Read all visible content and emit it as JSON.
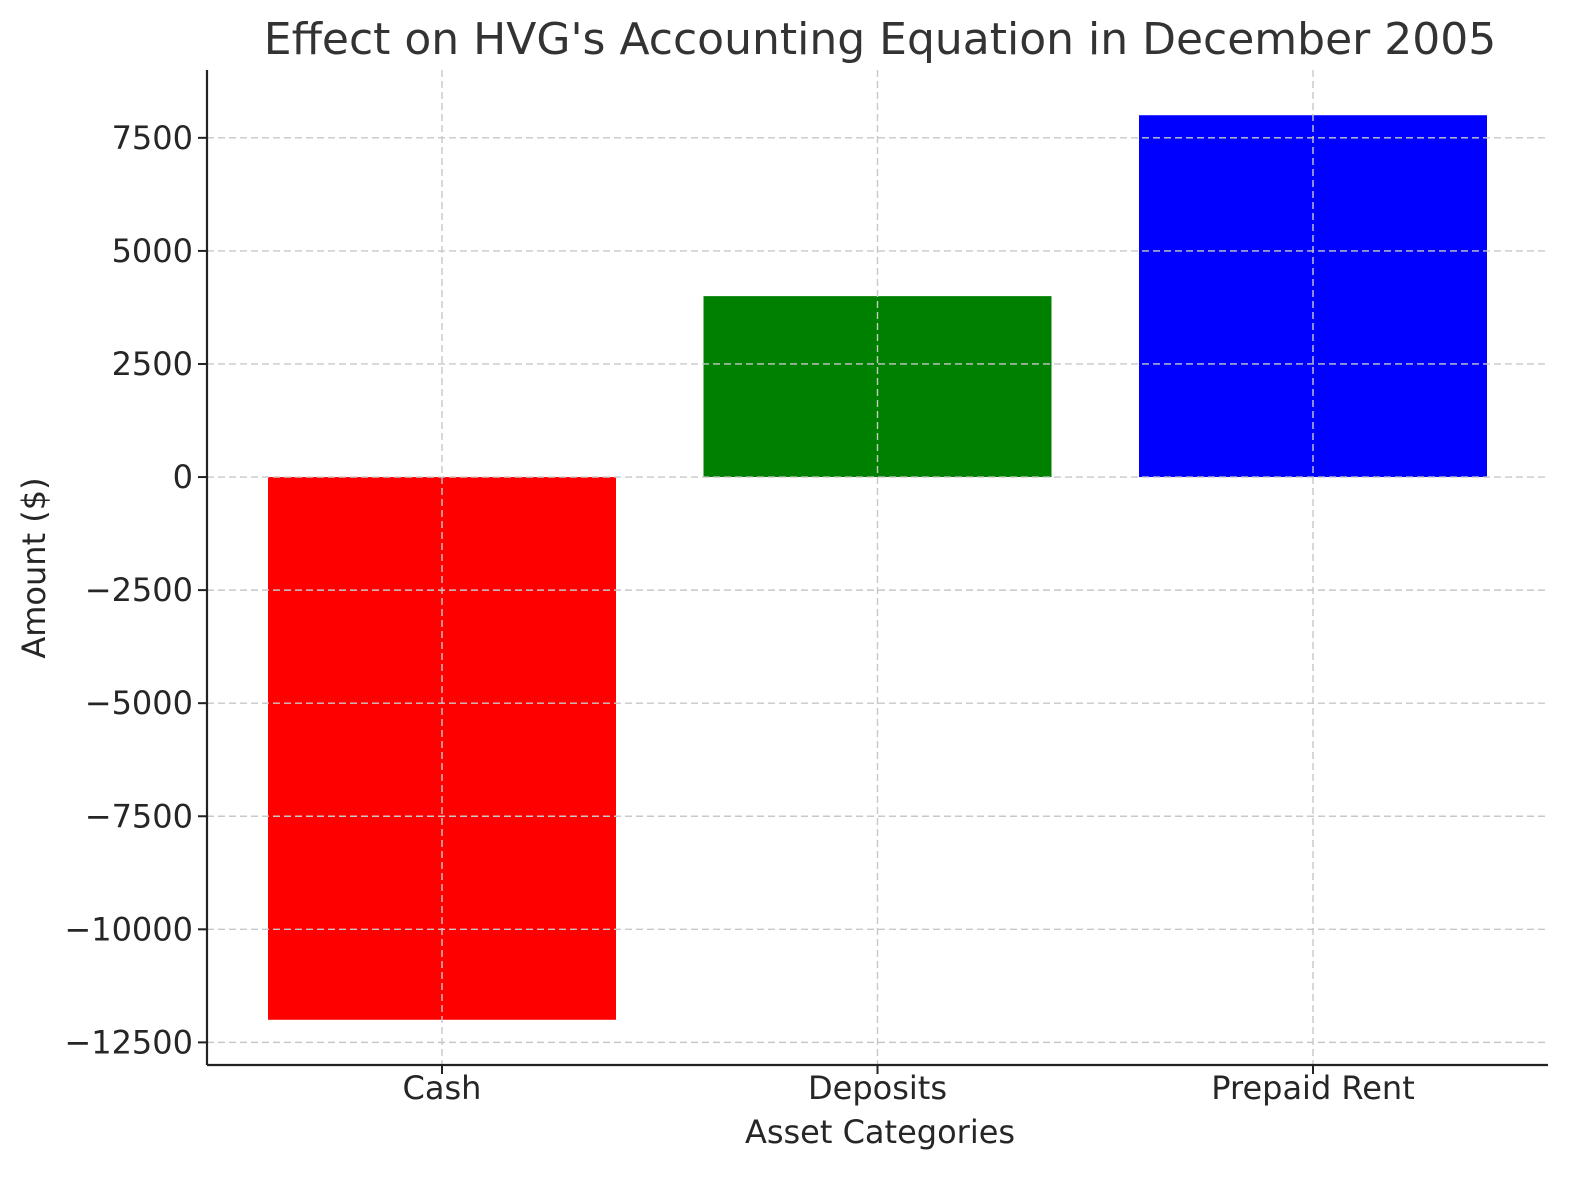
{
  "chart_data": {
    "type": "bar",
    "title": "Effect on HVG's Accounting Equation in December 2005",
    "xlabel": "Asset Categories",
    "ylabel": "Amount ($)",
    "categories": [
      "Cash",
      "Deposits",
      "Prepaid Rent"
    ],
    "values": [
      -12000,
      4000,
      8000
    ],
    "colors": [
      "#ff0000",
      "#008000",
      "#0000ff"
    ],
    "ylim": [
      -13000,
      9000
    ],
    "yticks": [
      -12500,
      -10000,
      -7500,
      -5000,
      -2500,
      0,
      2500,
      5000,
      7500
    ],
    "ytick_labels": [
      "−12500",
      "−10000",
      "−7500",
      "−5000",
      "−2500",
      "0",
      "2500",
      "5000",
      "7500"
    ],
    "grid": true
  }
}
